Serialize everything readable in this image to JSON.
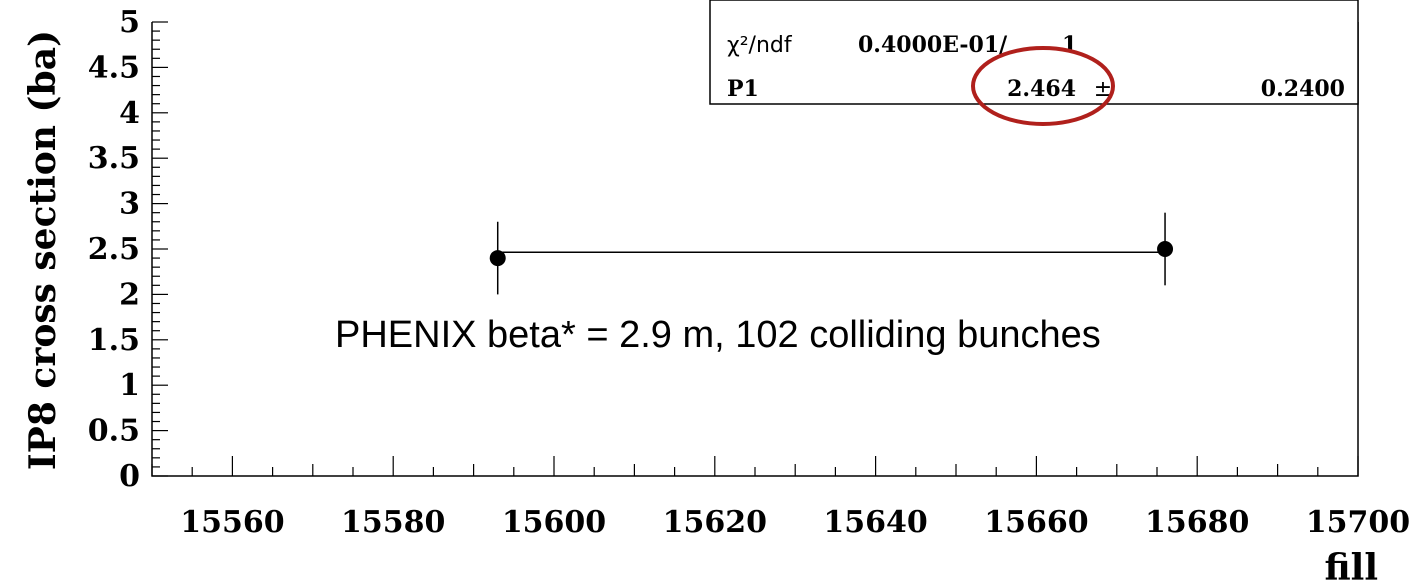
{
  "chart_data": {
    "type": "scatter",
    "xlabel": "fill",
    "ylabel": "IP8 cross section (ba)",
    "xlim": [
      15550,
      15700
    ],
    "ylim": [
      0,
      5
    ],
    "x_ticks": [
      15560,
      15580,
      15600,
      15620,
      15640,
      15660,
      15680,
      15700
    ],
    "y_ticks": [
      0,
      0.5,
      1,
      1.5,
      2,
      2.5,
      3,
      3.5,
      4,
      4.5,
      5
    ],
    "x_tick_labels": [
      "15560",
      "15580",
      "15600",
      "15620",
      "15640",
      "15660",
      "15680",
      "15700"
    ],
    "y_tick_labels": [
      "0",
      "0.5",
      "1",
      "1.5",
      "2",
      "2.5",
      "3",
      "3.5",
      "4",
      "4.5",
      "5"
    ],
    "points": [
      {
        "x": 15593,
        "y": 2.4,
        "yerr": 0.4
      },
      {
        "x": 15676,
        "y": 2.5,
        "yerr": 0.4
      }
    ],
    "fit": {
      "type": "constant",
      "value": 2.464,
      "x_range": [
        15593,
        15676
      ]
    },
    "stats": {
      "chi2_label": "χ²/ndf",
      "chi2_value": "0.4000E-01/",
      "ndf": "1",
      "p1_label": "P1",
      "p1_value": "2.464",
      "pm": "±",
      "p1_error": "0.2400"
    },
    "annotation": "PHENIX beta* = 2.9 m, 102 colliding bunches",
    "highlight_color": "#b0201c",
    "grid": false
  }
}
